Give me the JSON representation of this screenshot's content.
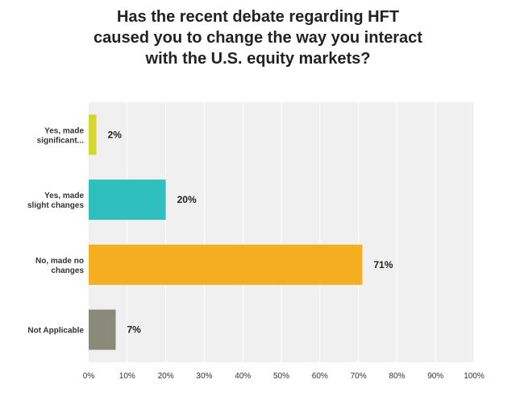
{
  "chart_data": {
    "type": "bar",
    "orientation": "horizontal",
    "title_lines": [
      "Has the recent debate regarding HFT",
      "caused you to change the way you interact",
      "with the U.S. equity markets?"
    ],
    "categories": [
      [
        "Yes, made",
        "significant..."
      ],
      [
        "Yes, made",
        "slight changes"
      ],
      [
        "No, made no",
        "changes"
      ],
      [
        "Not Applicable"
      ]
    ],
    "values": [
      2,
      20,
      71,
      7
    ],
    "value_labels": [
      "2%",
      "20%",
      "71%",
      "7%"
    ],
    "colors": [
      "#d4d62f",
      "#2fbfbf",
      "#f5ae20",
      "#8a8a7a"
    ],
    "xlim": [
      0,
      100
    ],
    "ticks": [
      {
        "value": 0,
        "label": "0%"
      },
      {
        "value": 10,
        "label": "10%"
      },
      {
        "value": 20,
        "label": "20%"
      },
      {
        "value": 30,
        "label": "30%"
      },
      {
        "value": 40,
        "label": "40%"
      },
      {
        "value": 50,
        "label": "50%"
      },
      {
        "value": 60,
        "label": "60%"
      },
      {
        "value": 70,
        "label": "70%"
      },
      {
        "value": 80,
        "label": "80%"
      },
      {
        "value": 90,
        "label": "90%"
      },
      {
        "value": 100,
        "label": "100%"
      }
    ],
    "grid": true,
    "plot_background": "#f0f0f0",
    "grid_color": "#ffffff"
  }
}
